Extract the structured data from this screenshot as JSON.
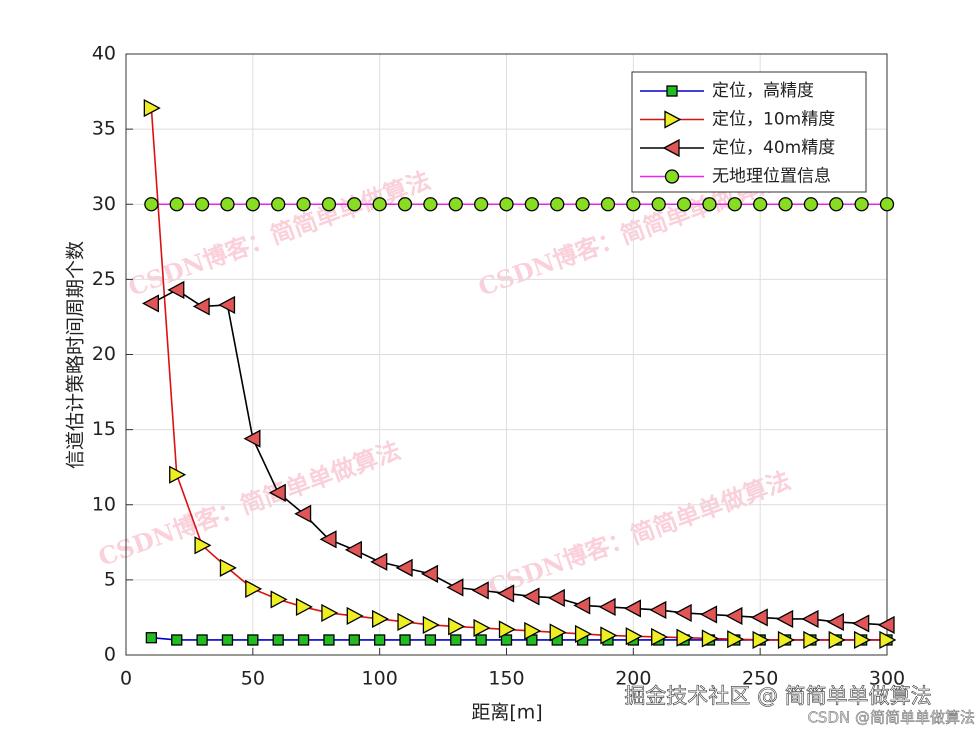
{
  "chart_data": {
    "type": "line",
    "xlabel": "距离[m]",
    "ylabel": "信道估计策略时间周期个数",
    "x": [
      10,
      20,
      30,
      40,
      50,
      60,
      70,
      80,
      90,
      100,
      110,
      120,
      130,
      140,
      150,
      160,
      170,
      180,
      190,
      200,
      210,
      220,
      230,
      240,
      250,
      260,
      270,
      280,
      290,
      300
    ],
    "series": [
      {
        "name": "定位，高精度",
        "color": "#0000cc",
        "marker": "square",
        "marker_color": "#22bb22",
        "values": [
          1.15,
          1,
          1,
          1,
          1,
          1,
          1,
          1,
          1,
          1,
          1,
          1,
          1,
          1,
          1,
          1,
          1,
          1,
          1,
          1,
          1,
          1,
          1,
          1,
          1,
          1,
          1,
          1,
          1,
          1
        ]
      },
      {
        "name": "定位，10m精度",
        "color": "#dd1111",
        "marker": "triangle-right",
        "marker_color": "#eeee22",
        "values": [
          36.4,
          12,
          7.3,
          5.8,
          4.4,
          3.7,
          3.2,
          2.8,
          2.6,
          2.4,
          2.2,
          2.0,
          1.9,
          1.8,
          1.7,
          1.6,
          1.5,
          1.4,
          1.3,
          1.25,
          1.2,
          1.15,
          1.1,
          1.05,
          1,
          1,
          1,
          1,
          1,
          1
        ]
      },
      {
        "name": "定位，40m精度",
        "color": "#000000",
        "marker": "triangle-left",
        "marker_color": "#e05555",
        "values": [
          23.4,
          24.3,
          23.2,
          23.3,
          14.4,
          10.8,
          9.4,
          7.7,
          7.0,
          6.2,
          5.8,
          5.4,
          4.5,
          4.3,
          4.1,
          3.9,
          3.8,
          3.3,
          3.2,
          3.1,
          3.0,
          2.8,
          2.7,
          2.6,
          2.5,
          2.4,
          2.4,
          2.2,
          2.1,
          2.0
        ]
      },
      {
        "name": "无地理位置信息",
        "color": "#ee22ee",
        "marker": "circle",
        "marker_color": "#88dd22",
        "values": [
          30,
          30,
          30,
          30,
          30,
          30,
          30,
          30,
          30,
          30,
          30,
          30,
          30,
          30,
          30,
          30,
          30,
          30,
          30,
          30,
          30,
          30,
          30,
          30,
          30,
          30,
          30,
          30,
          30,
          30
        ]
      }
    ],
    "xlim": [
      0,
      300
    ],
    "xticks": [
      0,
      50,
      100,
      150,
      200,
      250,
      300
    ],
    "ylim": [
      0,
      40
    ],
    "yticks": [
      0,
      5,
      10,
      15,
      20,
      25,
      30,
      35,
      40
    ],
    "grid": true,
    "legend": "upper right"
  },
  "watermarks": {
    "diagonal": "CSDN博客：简简单单做算法",
    "site": "掘金技术社区 @ 简简单单做算法",
    "csdn": "CSDN @简简单单做算法"
  }
}
